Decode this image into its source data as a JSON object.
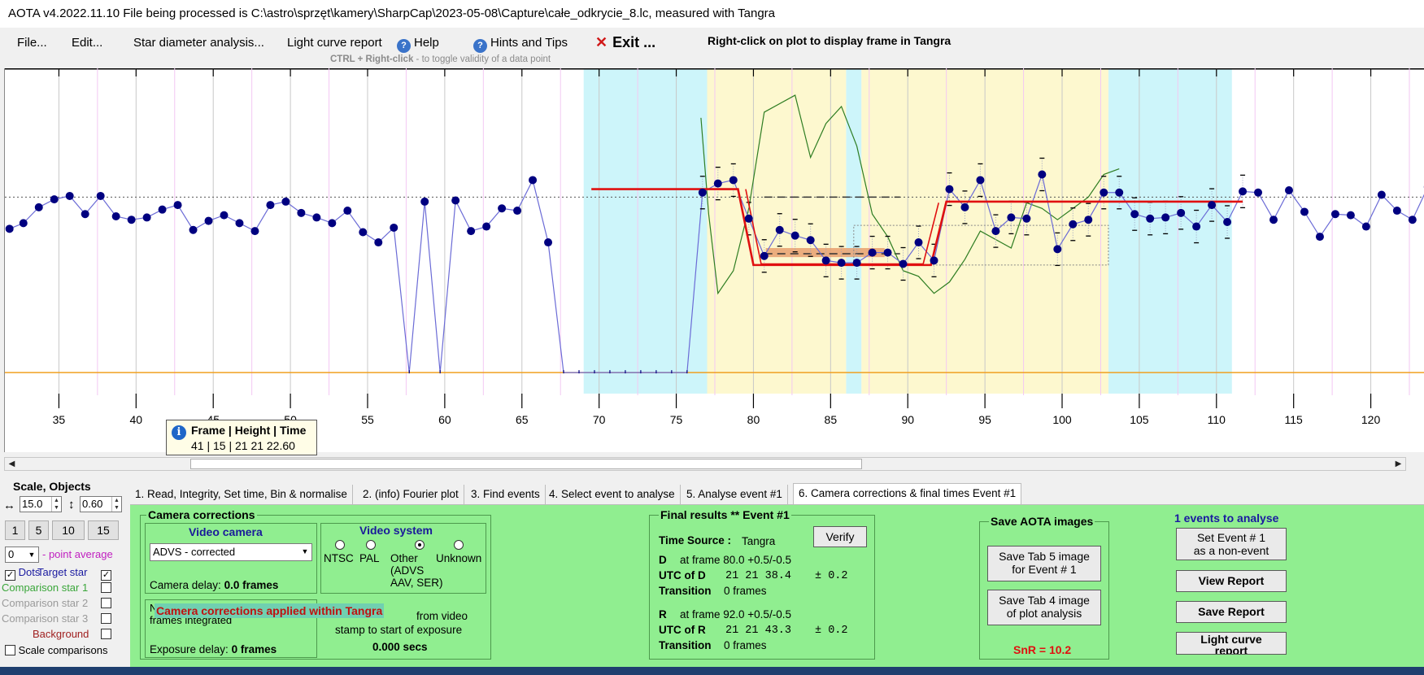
{
  "window": {
    "title": "AOTA v4.2022.11.10    File being processed is C:\\astro\\sprzęt\\kamery\\SharpCap\\2023-05-08\\Capture\\całe_odkrycie_8.lc, measured with Tangra"
  },
  "menu": {
    "file": "File...",
    "edit": "Edit...",
    "star_diameter": "Star diameter analysis...",
    "light_curve_report": "Light curve report",
    "help": "Help",
    "hints": "Hints and Tips",
    "exit": "Exit ...",
    "right_click_hint": "Right-click on plot to display frame in Tangra",
    "ctrl_hint_bold": "CTRL + Right-click",
    "ctrl_hint_rest": "  -  to toggle validity of a data point"
  },
  "tooltip": {
    "header": "Frame | Height | Time",
    "value": "41 | 15 | 21 21 22.60"
  },
  "chart_data": {
    "type": "line",
    "x_tick_labels": [
      "35",
      "40",
      "45",
      "50",
      "55",
      "60",
      "65",
      "70",
      "75",
      "80",
      "85",
      "90",
      "95",
      "100",
      "105",
      "110",
      "115",
      "120"
    ],
    "x_range": [
      31.5,
      123.5
    ],
    "y_range": [
      -2,
      24
    ],
    "baseline": 0,
    "mean_level": 15.5,
    "light_curve": [
      [
        31.8,
        12.7
      ],
      [
        32.7,
        13.2
      ],
      [
        33.7,
        14.6
      ],
      [
        34.7,
        15.3
      ],
      [
        35.7,
        15.6
      ],
      [
        36.7,
        14.0
      ],
      [
        37.7,
        15.6
      ],
      [
        38.7,
        13.8
      ],
      [
        39.7,
        13.5
      ],
      [
        40.7,
        13.7
      ],
      [
        41.7,
        14.4
      ],
      [
        42.7,
        14.8
      ],
      [
        43.7,
        12.6
      ],
      [
        44.7,
        13.4
      ],
      [
        45.7,
        13.9
      ],
      [
        46.7,
        13.2
      ],
      [
        47.7,
        12.5
      ],
      [
        48.7,
        14.8
      ],
      [
        49.7,
        15.1
      ],
      [
        50.7,
        14.1
      ],
      [
        51.7,
        13.7
      ],
      [
        52.7,
        13.2
      ],
      [
        53.7,
        14.3
      ],
      [
        54.7,
        12.4
      ],
      [
        55.7,
        11.5
      ],
      [
        56.7,
        12.8
      ],
      [
        57.7,
        0.0
      ],
      [
        58.7,
        15.1
      ],
      [
        59.7,
        0.0
      ],
      [
        60.7,
        15.2
      ],
      [
        61.7,
        12.5
      ],
      [
        62.7,
        12.9
      ],
      [
        63.7,
        14.5
      ],
      [
        64.7,
        14.3
      ],
      [
        65.7,
        17.0
      ],
      [
        66.7,
        11.5
      ],
      [
        67.7,
        0.0
      ],
      [
        68.7,
        0.0
      ],
      [
        69.7,
        0.0
      ],
      [
        70.7,
        0.0
      ],
      [
        71.7,
        0.0
      ],
      [
        72.7,
        0.0
      ],
      [
        73.7,
        0.0
      ],
      [
        74.7,
        0.0
      ],
      [
        75.7,
        0.0
      ],
      [
        76.7,
        15.9
      ],
      [
        77.7,
        16.7
      ],
      [
        78.7,
        17.0
      ],
      [
        79.7,
        13.6
      ],
      [
        80.7,
        10.3
      ],
      [
        81.7,
        12.6
      ],
      [
        82.7,
        12.1
      ],
      [
        83.7,
        11.7
      ],
      [
        84.7,
        9.9
      ],
      [
        85.7,
        9.7
      ],
      [
        86.7,
        9.7
      ],
      [
        87.7,
        10.6
      ],
      [
        88.7,
        10.6
      ],
      [
        89.7,
        9.6
      ],
      [
        90.7,
        11.5
      ],
      [
        91.7,
        9.9
      ],
      [
        92.7,
        16.2
      ],
      [
        93.7,
        14.6
      ],
      [
        94.7,
        17.0
      ],
      [
        95.7,
        12.5
      ],
      [
        96.7,
        13.7
      ],
      [
        97.7,
        13.6
      ],
      [
        98.7,
        17.5
      ],
      [
        99.7,
        10.9
      ],
      [
        100.7,
        13.1
      ],
      [
        101.7,
        13.5
      ],
      [
        102.7,
        15.9
      ],
      [
        103.7,
        15.9
      ],
      [
        104.7,
        14.0
      ],
      [
        105.7,
        13.6
      ],
      [
        106.7,
        13.7
      ],
      [
        107.7,
        14.1
      ],
      [
        108.7,
        12.9
      ],
      [
        109.7,
        14.8
      ],
      [
        110.7,
        13.3
      ],
      [
        111.7,
        16.0
      ],
      [
        112.7,
        15.9
      ],
      [
        113.7,
        13.5
      ],
      [
        114.7,
        16.1
      ],
      [
        115.7,
        14.2
      ],
      [
        116.7,
        12.0
      ],
      [
        117.7,
        14.0
      ],
      [
        118.7,
        13.9
      ],
      [
        119.7,
        12.9
      ],
      [
        120.7,
        15.7
      ],
      [
        121.7,
        14.3
      ],
      [
        122.7,
        13.5
      ],
      [
        123.7,
        16.4
      ]
    ],
    "error_bar_points_x": [
      76.7,
      77.7,
      78.7,
      79.7,
      80.7,
      81.7,
      82.7,
      83.7,
      84.7,
      85.7,
      86.7,
      87.7,
      88.7,
      89.7,
      90.7,
      91.7,
      92.7,
      93.7,
      94.7,
      95.7,
      96.7,
      97.7,
      98.7,
      99.7,
      100.7,
      101.7,
      102.7,
      103.7,
      104.7,
      105.7,
      106.7,
      107.7,
      108.7,
      109.7,
      110.7,
      111.7
    ],
    "model_fit": [
      [
        69.5,
        16.2
      ],
      [
        79.0,
        16.2
      ],
      [
        80.0,
        9.5
      ],
      [
        91.5,
        9.5
      ],
      [
        92.5,
        15.1
      ],
      [
        111.7,
        15.1
      ]
    ],
    "green_curve": [
      [
        76.6,
        22.5
      ],
      [
        77.1,
        14.0
      ],
      [
        77.7,
        7.0
      ],
      [
        78.7,
        9.0
      ],
      [
        79.7,
        14.5
      ],
      [
        80.7,
        23.0
      ],
      [
        82.7,
        24.5
      ],
      [
        83.7,
        19.0
      ],
      [
        84.7,
        22.0
      ],
      [
        85.7,
        23.5
      ],
      [
        86.7,
        20.0
      ],
      [
        87.7,
        14.0
      ],
      [
        88.7,
        12.0
      ],
      [
        89.7,
        9.0
      ],
      [
        90.7,
        8.5
      ],
      [
        91.7,
        7.0
      ],
      [
        92.7,
        8.0
      ],
      [
        93.7,
        10.0
      ],
      [
        94.7,
        12.5
      ],
      [
        96.7,
        11.0
      ],
      [
        97.7,
        15.0
      ],
      [
        98.7,
        14.5
      ],
      [
        99.7,
        13.5
      ],
      [
        100.7,
        14.5
      ],
      [
        101.7,
        15.5
      ],
      [
        102.7,
        17.5
      ],
      [
        103.7,
        18.0
      ]
    ],
    "dashed_upper_y": 15.5,
    "dashed_lower_y": 10.5,
    "uncertainty_band_y": [
      10.2,
      11.0
    ],
    "cyan_regions_x": [
      [
        69.0,
        77.0
      ],
      [
        86.0,
        87.0
      ],
      [
        103.0,
        111.0
      ]
    ],
    "yellow_regions_x": [
      [
        77.0,
        86.0
      ],
      [
        87.0,
        103.0
      ]
    ]
  },
  "left_panel": {
    "title": "Scale, Objects",
    "h_scale": "15.0",
    "v_scale": "0.60",
    "buttons": [
      "1",
      "5",
      "10",
      "15"
    ],
    "point_avg_value": "0",
    "point_avg_label": "- point average",
    "dots_label": "Dots",
    "target_star": "Target star",
    "comp1": "Comparison star 1",
    "comp2": "Comparison star 2",
    "comp3": "Comparison star 3",
    "background": "Background",
    "scale_comparisons": "Scale comparisons"
  },
  "tabs": [
    "1.  Read, Integrity, Set time, Bin & normalise",
    "2. (info)  Fourier plot",
    "3. Find events",
    "4.  Select event to analyse",
    "5.  Analyse event #1",
    "6. Camera corrections & final times Event #1"
  ],
  "camera": {
    "title": "Camera corrections",
    "video_camera_title": "Video camera",
    "camera_select": "ADVS - corrected",
    "camera_delay_label": "Camera delay:",
    "camera_delay_value": "0.0 frames",
    "video_system_title": "Video system",
    "ntsc": "NTSC",
    "pal": "PAL",
    "other": "Other\n(ADVS\nAAV, SER)",
    "unknown": "Unknown",
    "num_frames_label": "Number of\nframes integrated",
    "overlay": "Camera corrections applied within Tangra",
    "from_video": "from video",
    "stamp_text": "stamp to start of exposure",
    "offset_value": "0.000 secs",
    "exposure_delay_label": "Exposure delay:",
    "exposure_delay_value": "0 frames"
  },
  "final": {
    "title": "Final results  **  Event #1",
    "time_source_label": "Time Source :",
    "time_source_value": "Tangra",
    "verify": "Verify",
    "d_label": "D",
    "d_frame": "at frame 80.0  +0.5/-0.5",
    "utc_d_label": "UTC of D",
    "utc_d_value": "21 21 38.4",
    "utc_d_err": "± 0.2",
    "transition_label": "Transition",
    "transition_value": "0 frames",
    "r_label": "R",
    "r_frame": "at frame 92.0  +0.5/-0.5",
    "utc_r_label": "UTC of R",
    "utc_r_value": "21 21 43.3",
    "utc_r_err": "± 0.2"
  },
  "save_images": {
    "title": "Save AOTA images",
    "tab5": "Save Tab 5 image\nfor Event # 1",
    "tab4": "Save Tab 4 image\nof plot analysis",
    "snr": "SnR = 10.2"
  },
  "right": {
    "events_title": "1  events to analyse",
    "non_event": "Set Event # 1\nas a non-event",
    "view_report": "View Report",
    "save_report": "Save Report",
    "lc_report": "Light curve\nreport"
  },
  "colors": {
    "cyan_region": "#cdf5fa",
    "yellow_region": "#fdf8cf",
    "model_fit": "#e01010",
    "green_curve": "#2e7d22",
    "points": "#000080",
    "panel_green": "#90ee90",
    "baseline": "#f0a020"
  }
}
